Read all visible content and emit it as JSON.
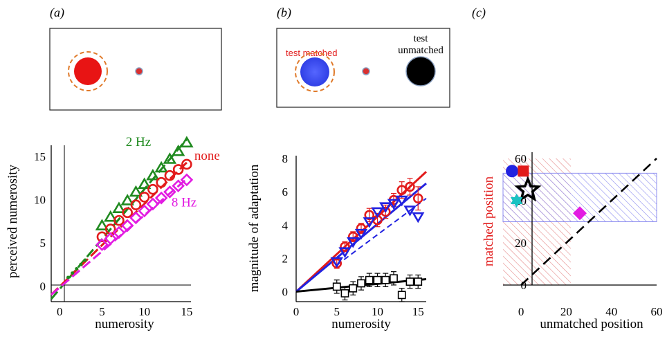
{
  "figure": {
    "panel_labels": [
      "(a)",
      "(b)",
      "(c)"
    ],
    "stimulus_b": {
      "left_label": "test matched",
      "right_label_lines": [
        "test",
        "unmatched"
      ]
    },
    "colors": {
      "none": "#e21b1b",
      "hz2": "#1f8a1f",
      "hz8": "#e21be2",
      "blue": "#2222e0",
      "black": "#000000",
      "orange_ring": "#e07a2a",
      "red_disc": "#e81414",
      "blue_disc": "#4455ff",
      "hatch_red": "#e58a8a",
      "hatch_blue": "#8d8df0"
    }
  },
  "chart_data": [
    {
      "panel": "(a)",
      "type": "scatter",
      "xlabel": "numerosity",
      "ylabel": "perceived numerosity",
      "xlim": [
        -1,
        15.5
      ],
      "ylim": [
        -1.8,
        17.5
      ],
      "xticks": [
        0,
        5,
        10,
        15
      ],
      "yticks": [
        0,
        5,
        10,
        15
      ],
      "series": [
        {
          "name": "2 Hz",
          "marker": "triangle",
          "color": "#1f8a1f",
          "x": [
            5,
            6,
            7,
            8,
            9,
            10,
            11,
            12,
            13,
            14,
            15
          ],
          "y": [
            7.0,
            8.0,
            9.0,
            9.9,
            10.9,
            11.8,
            12.8,
            13.7,
            14.7,
            15.6,
            16.6
          ],
          "fit": [
            [
              -1,
              -1.5
            ],
            [
              15,
              17.0
            ]
          ]
        },
        {
          "name": "none",
          "marker": "circle",
          "color": "#e21b1b",
          "x": [
            5,
            6,
            7,
            8,
            9,
            10,
            11,
            12,
            13,
            14,
            15
          ],
          "y": [
            5.7,
            6.6,
            7.6,
            8.5,
            9.4,
            10.3,
            11.2,
            12.0,
            12.8,
            13.5,
            14.1
          ],
          "fit": [
            [
              -1,
              -1.0
            ],
            [
              15,
              14.3
            ]
          ]
        },
        {
          "name": "8 Hz",
          "marker": "diamond",
          "color": "#e21be2",
          "x": [
            5,
            6,
            7,
            8,
            9,
            10,
            11,
            12,
            13,
            14,
            15
          ],
          "y": [
            4.8,
            5.5,
            6.2,
            7.0,
            7.9,
            8.7,
            9.5,
            10.2,
            10.9,
            11.6,
            12.3
          ],
          "fit": [
            [
              -1,
              -1.0
            ],
            [
              15,
              12.4
            ]
          ]
        }
      ],
      "low_points": {
        "x": [
          1,
          1.5,
          2,
          2.5,
          3
        ],
        "y": [
          1.0,
          1.5,
          2.0,
          2.5,
          3.0
        ]
      }
    },
    {
      "panel": "(b)",
      "type": "scatter",
      "xlabel": "numerosity",
      "ylabel": "magnitude of adaptation",
      "xlim": [
        0,
        16
      ],
      "ylim": [
        -0.6,
        8
      ],
      "xticks": [
        0,
        5,
        10,
        15
      ],
      "yticks": [
        0,
        2,
        4,
        6,
        8
      ],
      "series": [
        {
          "name": "",
          "marker": "circle",
          "color": "#e21b1b",
          "x": [
            5,
            6,
            7,
            8,
            9,
            10,
            11,
            12,
            13,
            14,
            15
          ],
          "y": [
            1.7,
            2.7,
            3.3,
            3.8,
            4.6,
            4.3,
            4.8,
            5.5,
            6.1,
            6.3,
            5.6
          ],
          "err": [
            0.3,
            0.3,
            0.3,
            0.3,
            0.4,
            0.4,
            0.4,
            0.4,
            0.5,
            0.5,
            0.7
          ],
          "fit": [
            [
              0,
              0
            ],
            [
              16,
              7.2
            ]
          ]
        },
        {
          "name": "",
          "marker": "triangle-down",
          "color": "#2222e0",
          "x": [
            5,
            6,
            7,
            8,
            9,
            10,
            11,
            12,
            13,
            14,
            15
          ],
          "y": [
            1.8,
            2.4,
            3.0,
            3.5,
            4.2,
            4.8,
            5.1,
            5.3,
            5.5,
            4.9,
            4.5
          ],
          "fit": [
            [
              0,
              0
            ],
            [
              16,
              6.5
            ]
          ]
        },
        {
          "name": "",
          "marker": "square",
          "color": "#000000",
          "x": [
            5,
            6,
            7,
            8,
            9,
            10,
            11,
            12,
            13,
            14,
            15
          ],
          "y": [
            0.3,
            -0.1,
            0.2,
            0.5,
            0.7,
            0.7,
            0.7,
            0.8,
            -0.2,
            0.6,
            0.6
          ],
          "err": [
            0.4,
            0.4,
            0.4,
            0.4,
            0.4,
            0.4,
            0.4,
            0.4,
            0.4,
            0.4,
            0.4
          ],
          "fit": [
            [
              0,
              0
            ],
            [
              16,
              0.75
            ]
          ]
        }
      ]
    },
    {
      "panel": "(c)",
      "type": "scatter",
      "xlabel": "unmatched position",
      "ylabel": "matched position",
      "xlim": [
        -8,
        60
      ],
      "ylim": [
        0,
        60
      ],
      "xticks": [
        0,
        20,
        40,
        60
      ],
      "yticks": [
        0,
        20,
        40,
        60
      ],
      "points": [
        {
          "shape": "circle",
          "color": "#2222e0",
          "x": -4,
          "y": 54
        },
        {
          "shape": "square",
          "color": "#e21b1b",
          "x": 1,
          "y": 54
        },
        {
          "shape": "star",
          "color": "#000000",
          "x": 3,
          "y": 45
        },
        {
          "shape": "star6",
          "color": "#19c2c2",
          "x": -2,
          "y": 40
        },
        {
          "shape": "diamond",
          "color": "#e21be2",
          "x": 26,
          "y": 34
        }
      ],
      "regions": [
        {
          "color": "#e58a8a",
          "x": [
            -8,
            22
          ],
          "y": [
            0,
            60
          ]
        },
        {
          "color": "#8d8df0",
          "x": [
            -8,
            60
          ],
          "y": [
            30,
            53
          ]
        }
      ],
      "identity_line": true
    }
  ]
}
